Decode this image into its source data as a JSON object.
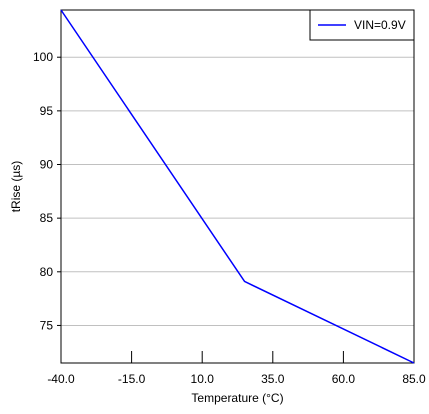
{
  "chart_data": {
    "type": "line",
    "title": "",
    "xlabel": "Temperature (°C)",
    "ylabel": "tRise (µs)",
    "xlim": [
      -40,
      85
    ],
    "ylim": [
      71.5,
      104.4
    ],
    "xticks": [
      -40,
      -15,
      10,
      35,
      60,
      85
    ],
    "xtick_labels": [
      "-40.0",
      "-15.0",
      "10.0",
      "35.0",
      "60.0",
      "85.0"
    ],
    "yticks": [
      75,
      80,
      85,
      90,
      95,
      100
    ],
    "ytick_labels": [
      "75",
      "80",
      "85",
      "90",
      "95",
      "100"
    ],
    "grid": "horizontal",
    "legend_position": "top-right",
    "series": [
      {
        "name": "VIN=0.9V",
        "color": "#0000ff",
        "x": [
          -40,
          25,
          85
        ],
        "y": [
          104.4,
          79.1,
          71.5
        ]
      }
    ]
  }
}
